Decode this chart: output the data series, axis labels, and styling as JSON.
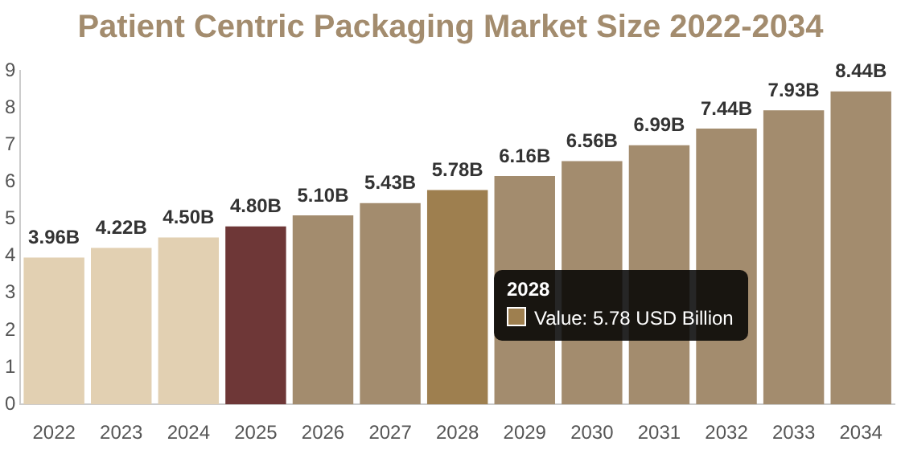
{
  "chart_data": {
    "type": "bar",
    "title": "Patient Centric Packaging Market Size 2022-2034",
    "categories": [
      "2022",
      "2023",
      "2024",
      "2025",
      "2026",
      "2027",
      "2028",
      "2029",
      "2030",
      "2031",
      "2032",
      "2033",
      "2034"
    ],
    "values": [
      3.96,
      4.22,
      4.5,
      4.8,
      5.1,
      5.43,
      5.78,
      6.16,
      6.56,
      6.99,
      7.44,
      7.93,
      8.44
    ],
    "value_labels": [
      "3.96B",
      "4.22B",
      "4.50B",
      "4.80B",
      "5.10B",
      "5.43B",
      "5.78B",
      "6.16B",
      "6.56B",
      "6.99B",
      "7.44B",
      "7.93B",
      "8.44B"
    ],
    "colors": [
      "#e2d0b2",
      "#e2d0b2",
      "#e2d0b2",
      "#6e3737",
      "#a38c6e",
      "#a38c6e",
      "#9e7f4f",
      "#a38c6e",
      "#a38c6e",
      "#a38c6e",
      "#a38c6e",
      "#a38c6e",
      "#a38c6e"
    ],
    "ylim": [
      0,
      9
    ],
    "yticks": [
      0,
      1,
      2,
      3,
      4,
      5,
      6,
      7,
      8,
      9
    ],
    "grid": false,
    "legend": false,
    "annotations": [
      "2028",
      "Value: 5.78 USD Billion"
    ]
  }
}
